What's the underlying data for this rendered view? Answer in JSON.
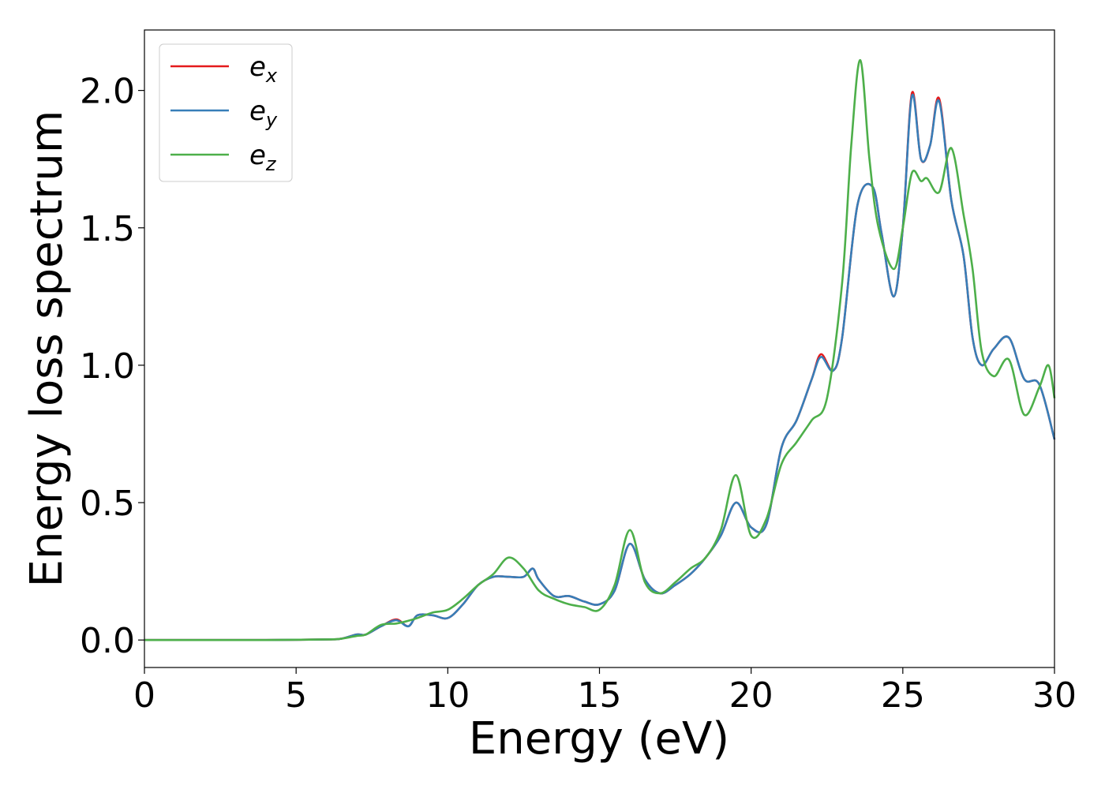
{
  "chart_data": {
    "type": "line",
    "title": "",
    "xlabel": "Energy (eV)",
    "ylabel": "Energy loss spectrum",
    "xlim": [
      0,
      30
    ],
    "ylim": [
      -0.1,
      2.22
    ],
    "xticks": [
      0,
      5,
      10,
      15,
      20,
      25,
      30
    ],
    "xtick_labels": [
      "0",
      "5",
      "10",
      "15",
      "20",
      "25",
      "30"
    ],
    "yticks": [
      0.0,
      0.5,
      1.0,
      1.5,
      2.0
    ],
    "ytick_labels": [
      "0.0",
      "0.5",
      "1.0",
      "1.5",
      "2.0"
    ],
    "grid": false,
    "legend_position": "top-left",
    "series": [
      {
        "name": "e_x",
        "label_base": "e",
        "label_sub": "x",
        "color": "#e41a1c",
        "x": [
          0,
          4,
          6,
          6.5,
          7,
          7.3,
          7.8,
          8.3,
          8.7,
          9,
          9.5,
          10,
          10.5,
          11,
          11.5,
          12,
          12.5,
          12.8,
          13,
          13.5,
          14,
          14.5,
          15,
          15.5,
          16,
          16.5,
          17,
          17.5,
          18,
          18.5,
          19,
          19.5,
          20,
          20.5,
          21,
          21.5,
          22,
          22.3,
          22.7,
          23,
          23.5,
          24,
          24.3,
          24.7,
          25,
          25.3,
          25.6,
          25.9,
          26.2,
          26.6,
          27,
          27.3,
          27.6,
          28,
          28.5,
          29,
          29.5,
          30
        ],
        "y": [
          0,
          0,
          0.002,
          0.005,
          0.02,
          0.02,
          0.05,
          0.075,
          0.05,
          0.09,
          0.09,
          0.08,
          0.13,
          0.2,
          0.23,
          0.23,
          0.23,
          0.26,
          0.22,
          0.16,
          0.16,
          0.14,
          0.13,
          0.18,
          0.35,
          0.22,
          0.17,
          0.2,
          0.24,
          0.3,
          0.38,
          0.5,
          0.41,
          0.42,
          0.7,
          0.8,
          0.95,
          1.04,
          0.98,
          1.1,
          1.58,
          1.65,
          1.48,
          1.25,
          1.5,
          1.99,
          1.75,
          1.8,
          1.97,
          1.6,
          1.4,
          1.1,
          1.0,
          1.06,
          1.1,
          0.95,
          0.93,
          0.73
        ]
      },
      {
        "name": "e_y",
        "label_base": "e",
        "label_sub": "y",
        "color": "#377eb8",
        "x": [
          0,
          4,
          6,
          6.5,
          7,
          7.3,
          7.8,
          8.3,
          8.7,
          9,
          9.5,
          10,
          10.5,
          11,
          11.5,
          12,
          12.5,
          12.8,
          13,
          13.5,
          14,
          14.5,
          15,
          15.5,
          16,
          16.5,
          17,
          17.5,
          18,
          18.5,
          19,
          19.5,
          20,
          20.5,
          21,
          21.5,
          22,
          22.3,
          22.7,
          23,
          23.5,
          24,
          24.3,
          24.7,
          25,
          25.3,
          25.6,
          25.9,
          26.2,
          26.6,
          27,
          27.3,
          27.6,
          28,
          28.5,
          29,
          29.5,
          30
        ],
        "y": [
          0,
          0,
          0.002,
          0.005,
          0.02,
          0.02,
          0.05,
          0.072,
          0.05,
          0.09,
          0.09,
          0.08,
          0.13,
          0.2,
          0.23,
          0.23,
          0.23,
          0.26,
          0.22,
          0.16,
          0.16,
          0.14,
          0.13,
          0.18,
          0.35,
          0.22,
          0.17,
          0.2,
          0.24,
          0.3,
          0.38,
          0.5,
          0.41,
          0.42,
          0.7,
          0.8,
          0.95,
          1.03,
          0.98,
          1.1,
          1.58,
          1.65,
          1.48,
          1.25,
          1.5,
          1.98,
          1.75,
          1.8,
          1.96,
          1.6,
          1.4,
          1.1,
          1.0,
          1.06,
          1.1,
          0.95,
          0.93,
          0.73
        ]
      },
      {
        "name": "e_z",
        "label_base": "e",
        "label_sub": "z",
        "color": "#4daf4a",
        "x": [
          0,
          4,
          6,
          6.5,
          7,
          7.3,
          7.8,
          8.3,
          8.7,
          9,
          9.5,
          10,
          10.5,
          11,
          11.5,
          12,
          12.5,
          13,
          13.5,
          14,
          14.5,
          15,
          15.5,
          16,
          16.5,
          17,
          17.5,
          18,
          18.5,
          19,
          19.5,
          20,
          20.5,
          21,
          21.5,
          22,
          22.5,
          23,
          23.3,
          23.6,
          23.9,
          24.2,
          24.7,
          25,
          25.3,
          25.6,
          25.8,
          26.2,
          26.6,
          27,
          27.3,
          27.6,
          28,
          28.5,
          29,
          29.5,
          29.8,
          30
        ],
        "y": [
          0,
          0,
          0.002,
          0.005,
          0.015,
          0.02,
          0.055,
          0.06,
          0.07,
          0.08,
          0.1,
          0.11,
          0.15,
          0.2,
          0.24,
          0.3,
          0.26,
          0.18,
          0.15,
          0.13,
          0.12,
          0.11,
          0.2,
          0.4,
          0.21,
          0.17,
          0.21,
          0.26,
          0.3,
          0.4,
          0.6,
          0.38,
          0.44,
          0.64,
          0.72,
          0.8,
          0.88,
          1.3,
          1.8,
          2.11,
          1.75,
          1.5,
          1.35,
          1.5,
          1.7,
          1.67,
          1.68,
          1.63,
          1.79,
          1.55,
          1.35,
          1.05,
          0.96,
          1.02,
          0.82,
          0.92,
          1.0,
          0.88
        ]
      }
    ]
  }
}
